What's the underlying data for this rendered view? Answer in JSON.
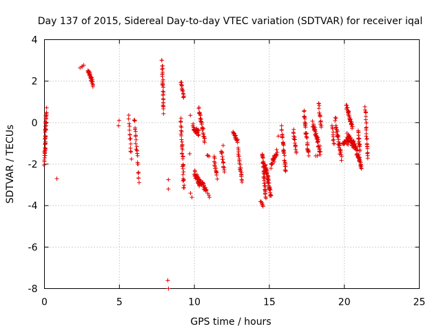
{
  "chart_data": {
    "type": "scatter",
    "title": "Day 137 of 2015, Sidereal Day-to-day VTEC variation (SDTVAR) for receiver iqal",
    "xlabel": "GPS time / hours",
    "ylabel": "SDTVAR / TECUs",
    "xlim": [
      0,
      25
    ],
    "ylim": [
      -8,
      4
    ],
    "xticks": [
      0,
      5,
      10,
      15,
      20,
      25
    ],
    "yticks": [
      -8,
      -6,
      -4,
      -2,
      0,
      2,
      4
    ],
    "x_tick_labels": [
      "0",
      "5",
      "10",
      "15",
      "20",
      "25"
    ],
    "y_tick_labels": [
      "-8",
      "-6",
      "-4",
      "-2",
      "0",
      "2",
      "4"
    ],
    "grid": true,
    "marker": "+",
    "color": "#e00000",
    "segments": [
      {
        "x0": 0.0,
        "x1": 0.12,
        "y0": -1.8,
        "y1": 0.6,
        "n": 45,
        "spread": 0.5
      },
      {
        "x0": 0.8,
        "x1": 0.8,
        "y0": -2.7,
        "y1": -2.7,
        "n": 1,
        "spread": 0
      },
      {
        "x0": 2.4,
        "x1": 2.6,
        "y0": 2.65,
        "y1": 2.75,
        "n": 4,
        "spread": 0.05
      },
      {
        "x0": 2.9,
        "x1": 3.25,
        "y0": 2.55,
        "y1": 1.85,
        "n": 30,
        "spread": 0.25
      },
      {
        "x0": 4.95,
        "x1": 4.95,
        "y0": 0.1,
        "y1": -0.15,
        "n": 2,
        "spread": 0
      },
      {
        "x0": 5.6,
        "x1": 5.8,
        "y0": 0.35,
        "y1": -1.7,
        "n": 14,
        "spread": 0.3
      },
      {
        "x0": 6.0,
        "x1": 6.3,
        "y0": 0.3,
        "y1": -2.8,
        "n": 25,
        "spread": 0.35
      },
      {
        "x0": 7.85,
        "x1": 7.95,
        "y0": 3.0,
        "y1": 0.5,
        "n": 30,
        "spread": 0.2
      },
      {
        "x0": 8.25,
        "x1": 8.25,
        "y0": -2.75,
        "y1": -3.2,
        "n": 2,
        "spread": 0
      },
      {
        "x0": 8.25,
        "x1": 8.25,
        "y0": -7.6,
        "y1": -8.0,
        "n": 2,
        "spread": 0
      },
      {
        "x0": 9.1,
        "x1": 9.3,
        "y0": 2.0,
        "y1": 1.2,
        "n": 14,
        "spread": 0.15
      },
      {
        "x0": 9.1,
        "x1": 9.3,
        "y0": 0.1,
        "y1": -3.2,
        "n": 35,
        "spread": 0.4
      },
      {
        "x0": 9.7,
        "x1": 9.7,
        "y0": 0.35,
        "y1": 0.35,
        "n": 1,
        "spread": 0
      },
      {
        "x0": 9.7,
        "x1": 9.7,
        "y0": -1.5,
        "y1": -1.5,
        "n": 1,
        "spread": 0
      },
      {
        "x0": 9.75,
        "x1": 9.85,
        "y0": -3.4,
        "y1": -3.6,
        "n": 2,
        "spread": 0
      },
      {
        "x0": 9.9,
        "x1": 10.3,
        "y0": -0.2,
        "y1": -0.5,
        "n": 25,
        "spread": 0.3
      },
      {
        "x0": 10.0,
        "x1": 10.4,
        "y0": -2.4,
        "y1": -3.0,
        "n": 35,
        "spread": 0.3
      },
      {
        "x0": 10.3,
        "x1": 10.7,
        "y0": 0.6,
        "y1": -0.9,
        "n": 30,
        "spread": 0.3
      },
      {
        "x0": 10.4,
        "x1": 10.8,
        "y0": -2.8,
        "y1": -3.3,
        "n": 25,
        "spread": 0.25
      },
      {
        "x0": 10.9,
        "x1": 11.0,
        "y0": -3.4,
        "y1": -3.6,
        "n": 3,
        "spread": 0
      },
      {
        "x0": 10.85,
        "x1": 11.0,
        "y0": -1.55,
        "y1": -1.6,
        "n": 3,
        "spread": 0.05
      },
      {
        "x0": 11.3,
        "x1": 11.5,
        "y0": -1.6,
        "y1": -2.7,
        "n": 15,
        "spread": 0.25
      },
      {
        "x0": 11.8,
        "x1": 12.0,
        "y0": -1.3,
        "y1": -2.4,
        "n": 15,
        "spread": 0.25
      },
      {
        "x0": 11.9,
        "x1": 11.9,
        "y0": -1.1,
        "y1": -1.1,
        "n": 1,
        "spread": 0
      },
      {
        "x0": 12.6,
        "x1": 12.9,
        "y0": -0.5,
        "y1": -0.9,
        "n": 20,
        "spread": 0.2
      },
      {
        "x0": 12.9,
        "x1": 13.2,
        "y0": -1.3,
        "y1": -2.85,
        "n": 25,
        "spread": 0.3
      },
      {
        "x0": 14.4,
        "x1": 14.6,
        "y0": -3.8,
        "y1": -4.0,
        "n": 8,
        "spread": 0.1
      },
      {
        "x0": 14.55,
        "x1": 14.75,
        "y0": -1.5,
        "y1": -3.6,
        "n": 40,
        "spread": 0.3
      },
      {
        "x0": 14.7,
        "x1": 15.1,
        "y0": -2.0,
        "y1": -3.5,
        "n": 40,
        "spread": 0.35
      },
      {
        "x0": 15.1,
        "x1": 15.5,
        "y0": -2.1,
        "y1": -1.4,
        "n": 25,
        "spread": 0.3
      },
      {
        "x0": 15.6,
        "x1": 15.6,
        "y0": -0.65,
        "y1": -0.65,
        "n": 1,
        "spread": 0
      },
      {
        "x0": 15.8,
        "x1": 16.1,
        "y0": -0.3,
        "y1": -2.4,
        "n": 30,
        "spread": 0.3
      },
      {
        "x0": 16.6,
        "x1": 16.8,
        "y0": -0.4,
        "y1": -1.4,
        "n": 15,
        "spread": 0.2
      },
      {
        "x0": 17.3,
        "x1": 17.6,
        "y0": 0.55,
        "y1": -1.5,
        "n": 30,
        "spread": 0.3
      },
      {
        "x0": 17.6,
        "x1": 17.6,
        "y0": -1.6,
        "y1": -1.6,
        "n": 1,
        "spread": 0
      },
      {
        "x0": 17.9,
        "x1": 18.4,
        "y0": 0.0,
        "y1": -1.4,
        "n": 45,
        "spread": 0.35
      },
      {
        "x0": 18.1,
        "x1": 18.2,
        "y0": -1.6,
        "y1": -1.6,
        "n": 2,
        "spread": 0
      },
      {
        "x0": 18.3,
        "x1": 18.45,
        "y0": 0.9,
        "y1": -0.3,
        "n": 15,
        "spread": 0.2
      },
      {
        "x0": 19.2,
        "x1": 19.3,
        "y0": -0.1,
        "y1": -1.1,
        "n": 10,
        "spread": 0.2
      },
      {
        "x0": 19.4,
        "x1": 19.8,
        "y0": 0.15,
        "y1": -1.7,
        "n": 35,
        "spread": 0.4
      },
      {
        "x0": 19.9,
        "x1": 20.3,
        "y0": -0.9,
        "y1": -1.0,
        "n": 20,
        "spread": 0.25
      },
      {
        "x0": 20.15,
        "x1": 20.55,
        "y0": 0.8,
        "y1": -0.2,
        "n": 30,
        "spread": 0.3
      },
      {
        "x0": 20.2,
        "x1": 20.7,
        "y0": -0.6,
        "y1": -1.2,
        "n": 35,
        "spread": 0.3
      },
      {
        "x0": 20.6,
        "x1": 21.15,
        "y0": -0.9,
        "y1": -2.1,
        "n": 40,
        "spread": 0.3
      },
      {
        "x0": 20.9,
        "x1": 21.05,
        "y0": -0.4,
        "y1": -1.4,
        "n": 15,
        "spread": 0.25
      },
      {
        "x0": 21.4,
        "x1": 21.55,
        "y0": 0.8,
        "y1": -1.8,
        "n": 25,
        "spread": 0.3
      }
    ]
  }
}
